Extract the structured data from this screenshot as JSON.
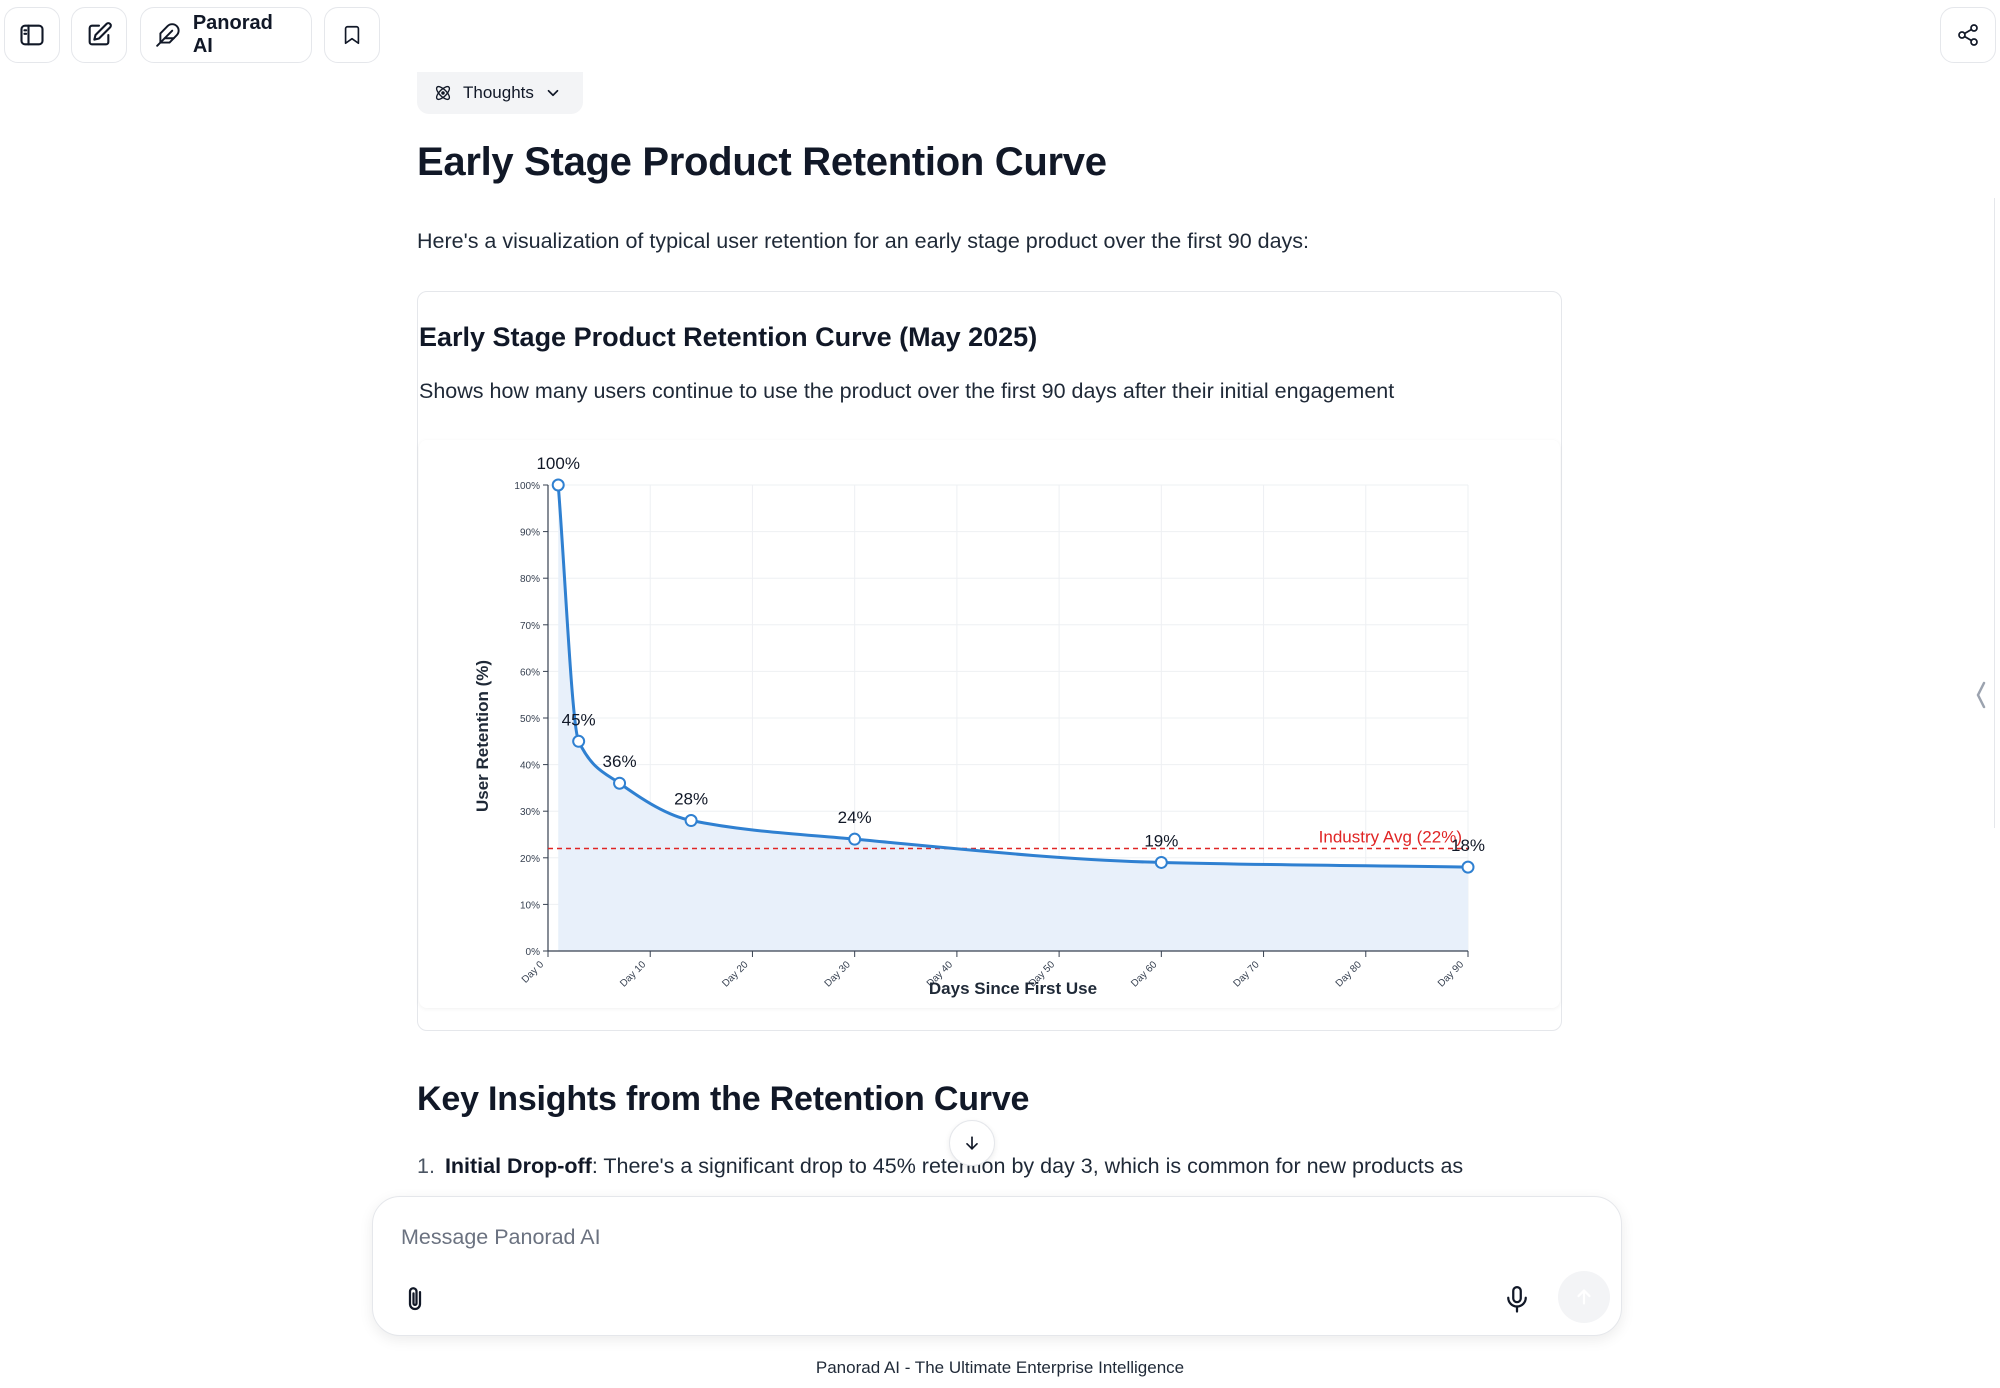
{
  "header": {
    "model_label": "Panorad AI"
  },
  "thoughts": {
    "label": "Thoughts"
  },
  "main": {
    "title": "Early Stage Product Retention Curve",
    "intro": "Here's a visualization of typical user retention for an early stage product over the first 90 days:",
    "chart_card": {
      "title": "Early Stage Product Retention Curve (May 2025)",
      "subtitle": "Shows how many users continue to use the product over the first 90 days after their initial engagement"
    },
    "insights_title": "Key Insights from the Retention Curve",
    "insight_1": {
      "number": "1.",
      "term": "Initial Drop-off",
      "text": ": There's a significant drop to 45% retention by day 3, which is common for new products as"
    }
  },
  "composer": {
    "placeholder": "Message Panorad AI"
  },
  "footer": {
    "text": "Panorad AI - The Ultimate Enterprise Intelligence"
  },
  "chart_data": {
    "type": "area",
    "xlabel": "Days Since First Use",
    "ylabel": "User Retention (%)",
    "xlim": [
      0,
      90
    ],
    "ylim": [
      0,
      100
    ],
    "x_ticks": [
      0,
      10,
      20,
      30,
      40,
      50,
      60,
      70,
      80,
      90
    ],
    "x_tick_labels": [
      "Day 0",
      "Day 10",
      "Day 20",
      "Day 30",
      "Day 40",
      "Day 50",
      "Day 60",
      "Day 70",
      "Day 80",
      "Day 90"
    ],
    "y_ticks": [
      0,
      10,
      20,
      30,
      40,
      50,
      60,
      70,
      80,
      90,
      100
    ],
    "y_tick_labels": [
      "0%",
      "10%",
      "20%",
      "30%",
      "40%",
      "50%",
      "60%",
      "70%",
      "80%",
      "90%",
      "100%"
    ],
    "grid": true,
    "series": [
      {
        "x": [
          1,
          3,
          7,
          14,
          30,
          60,
          90
        ],
        "y": [
          100,
          45,
          36,
          28,
          24,
          19,
          18
        ],
        "labels": [
          "100%",
          "45%",
          "36%",
          "28%",
          "24%",
          "19%",
          "18%"
        ],
        "color": "#2f80d1",
        "fill": "#e8f0fa"
      }
    ],
    "reference_line": {
      "y": 22,
      "label": "Industry Avg (22%)",
      "color": "#e02424"
    }
  }
}
